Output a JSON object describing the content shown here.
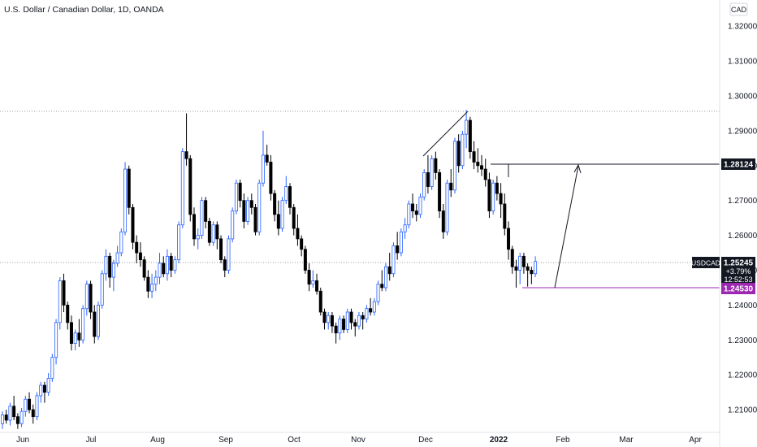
{
  "header": {
    "title": "U.S. Dollar / Canadian Dollar, 1D, OANDA",
    "currency": "CAD"
  },
  "price_labels": {
    "upper_level": "1.28124",
    "current_symbol": "USDCAD",
    "current_price": "1.25245",
    "current_change": "+3.79%",
    "countdown": "12:52:53",
    "support_level": "1.24530"
  },
  "colors": {
    "up": "#2962ff",
    "down": "#000000",
    "support": "#9c27b0",
    "dotted": "#787b86",
    "line": "#131722"
  },
  "chart_data": {
    "type": "candlestick",
    "title": "U.S. Dollar / Canadian Dollar, 1D, OANDA",
    "ylim": [
      1.2035,
      1.3275
    ],
    "y_ticks": [
      "1.32000",
      "1.31000",
      "1.30000",
      "1.29000",
      "1.28000",
      "1.27000",
      "1.26000",
      "1.25000",
      "1.24000",
      "1.23000",
      "1.22000",
      "1.21000"
    ],
    "x_ticks": [
      "Jun",
      "Jul",
      "Aug",
      "Sep",
      "Oct",
      "Nov",
      "Dec",
      "2022",
      "Feb",
      "Mar",
      "Apr"
    ],
    "x_ticks_bold": [
      "2022"
    ],
    "ohlc": [
      [
        1.206,
        1.2095,
        1.2045,
        1.2085
      ],
      [
        1.2085,
        1.21,
        1.206,
        1.207
      ],
      [
        1.207,
        1.212,
        1.2055,
        1.211
      ],
      [
        1.211,
        1.214,
        1.207,
        1.208
      ],
      [
        1.208,
        1.209,
        1.2045,
        1.206
      ],
      [
        1.206,
        1.2105,
        1.205,
        1.2095
      ],
      [
        1.2095,
        1.214,
        1.208,
        1.213
      ],
      [
        1.213,
        1.215,
        1.209,
        1.21
      ],
      [
        1.21,
        1.2115,
        1.206,
        1.208
      ],
      [
        1.208,
        1.215,
        1.207,
        1.214
      ],
      [
        1.214,
        1.218,
        1.212,
        1.217
      ],
      [
        1.217,
        1.218,
        1.212,
        1.215
      ],
      [
        1.215,
        1.2205,
        1.214,
        1.219
      ],
      [
        1.219,
        1.226,
        1.218,
        1.225
      ],
      [
        1.225,
        1.236,
        1.223,
        1.235
      ],
      [
        1.235,
        1.248,
        1.233,
        1.247
      ],
      [
        1.247,
        1.249,
        1.238,
        1.24
      ],
      [
        1.24,
        1.241,
        1.233,
        1.235
      ],
      [
        1.235,
        1.237,
        1.227,
        1.229
      ],
      [
        1.229,
        1.233,
        1.227,
        1.232
      ],
      [
        1.232,
        1.236,
        1.228,
        1.23
      ],
      [
        1.23,
        1.24,
        1.229,
        1.239
      ],
      [
        1.239,
        1.247,
        1.237,
        1.246
      ],
      [
        1.246,
        1.247,
        1.236,
        1.238
      ],
      [
        1.238,
        1.24,
        1.229,
        1.231
      ],
      [
        1.231,
        1.241,
        1.23,
        1.24
      ],
      [
        1.24,
        1.25,
        1.239,
        1.249
      ],
      [
        1.249,
        1.256,
        1.247,
        1.254
      ],
      [
        1.254,
        1.255,
        1.245,
        1.248
      ],
      [
        1.248,
        1.253,
        1.244,
        1.252
      ],
      [
        1.252,
        1.257,
        1.251,
        1.255
      ],
      [
        1.255,
        1.262,
        1.254,
        1.261
      ],
      [
        1.261,
        1.281,
        1.26,
        1.279
      ],
      [
        1.279,
        1.28,
        1.266,
        1.268
      ],
      [
        1.268,
        1.269,
        1.256,
        1.258
      ],
      [
        1.258,
        1.26,
        1.252,
        1.255
      ],
      [
        1.255,
        1.258,
        1.251,
        1.253
      ],
      [
        1.253,
        1.254,
        1.247,
        1.248
      ],
      [
        1.248,
        1.25,
        1.242,
        1.244
      ],
      [
        1.244,
        1.249,
        1.242,
        1.246
      ],
      [
        1.246,
        1.25,
        1.244,
        1.248
      ],
      [
        1.248,
        1.255,
        1.246,
        1.252
      ],
      [
        1.252,
        1.254,
        1.248,
        1.249
      ],
      [
        1.249,
        1.256,
        1.247,
        1.254
      ],
      [
        1.254,
        1.255,
        1.248,
        1.25
      ],
      [
        1.25,
        1.254,
        1.249,
        1.253
      ],
      [
        1.253,
        1.264,
        1.252,
        1.263
      ],
      [
        1.263,
        1.285,
        1.262,
        1.284
      ],
      [
        1.284,
        1.295,
        1.28,
        1.282
      ],
      [
        1.282,
        1.283,
        1.264,
        1.266
      ],
      [
        1.266,
        1.268,
        1.257,
        1.259
      ],
      [
        1.259,
        1.262,
        1.256,
        1.26
      ],
      [
        1.26,
        1.271,
        1.259,
        1.27
      ],
      [
        1.27,
        1.271,
        1.262,
        1.264
      ],
      [
        1.264,
        1.265,
        1.257,
        1.258
      ],
      [
        1.258,
        1.264,
        1.257,
        1.263
      ],
      [
        1.263,
        1.264,
        1.256,
        1.259
      ],
      [
        1.259,
        1.26,
        1.252,
        1.253
      ],
      [
        1.253,
        1.254,
        1.248,
        1.25
      ],
      [
        1.25,
        1.26,
        1.249,
        1.259
      ],
      [
        1.259,
        1.268,
        1.258,
        1.267
      ],
      [
        1.267,
        1.276,
        1.266,
        1.275
      ],
      [
        1.275,
        1.276,
        1.268,
        1.27
      ],
      [
        1.27,
        1.272,
        1.262,
        1.264
      ],
      [
        1.264,
        1.271,
        1.263,
        1.27
      ],
      [
        1.27,
        1.272,
        1.266,
        1.268
      ],
      [
        1.268,
        1.269,
        1.26,
        1.261
      ],
      [
        1.261,
        1.276,
        1.26,
        1.275
      ],
      [
        1.275,
        1.29,
        1.274,
        1.283
      ],
      [
        1.283,
        1.286,
        1.28,
        1.281
      ],
      [
        1.281,
        1.283,
        1.27,
        1.272
      ],
      [
        1.272,
        1.273,
        1.264,
        1.266
      ],
      [
        1.266,
        1.27,
        1.26,
        1.262
      ],
      [
        1.262,
        1.271,
        1.261,
        1.27
      ],
      [
        1.27,
        1.277,
        1.269,
        1.274
      ],
      [
        1.274,
        1.275,
        1.266,
        1.268
      ],
      [
        1.268,
        1.269,
        1.26,
        1.262
      ],
      [
        1.262,
        1.266,
        1.257,
        1.259
      ],
      [
        1.259,
        1.26,
        1.254,
        1.256
      ],
      [
        1.256,
        1.257,
        1.249,
        1.25
      ],
      [
        1.25,
        1.252,
        1.244,
        1.246
      ],
      [
        1.246,
        1.25,
        1.245,
        1.247
      ],
      [
        1.247,
        1.249,
        1.243,
        1.244
      ],
      [
        1.244,
        1.245,
        1.237,
        1.238
      ],
      [
        1.238,
        1.239,
        1.233,
        1.235
      ],
      [
        1.235,
        1.238,
        1.233,
        1.237
      ],
      [
        1.237,
        1.238,
        1.232,
        1.234
      ],
      [
        1.234,
        1.235,
        1.229,
        1.232
      ],
      [
        1.232,
        1.237,
        1.23,
        1.236
      ],
      [
        1.236,
        1.237,
        1.232,
        1.233
      ],
      [
        1.233,
        1.239,
        1.232,
        1.238
      ],
      [
        1.238,
        1.239,
        1.233,
        1.235
      ],
      [
        1.235,
        1.236,
        1.231,
        1.234
      ],
      [
        1.234,
        1.238,
        1.233,
        1.237
      ],
      [
        1.237,
        1.238,
        1.233,
        1.236
      ],
      [
        1.236,
        1.24,
        1.235,
        1.239
      ],
      [
        1.239,
        1.242,
        1.237,
        1.238
      ],
      [
        1.238,
        1.242,
        1.237,
        1.241
      ],
      [
        1.241,
        1.247,
        1.24,
        1.246
      ],
      [
        1.246,
        1.25,
        1.244,
        1.245
      ],
      [
        1.245,
        1.252,
        1.244,
        1.251
      ],
      [
        1.251,
        1.255,
        1.247,
        1.249
      ],
      [
        1.249,
        1.258,
        1.248,
        1.257
      ],
      [
        1.257,
        1.261,
        1.253,
        1.255
      ],
      [
        1.255,
        1.262,
        1.254,
        1.261
      ],
      [
        1.261,
        1.265,
        1.259,
        1.263
      ],
      [
        1.263,
        1.27,
        1.262,
        1.269
      ],
      [
        1.269,
        1.272,
        1.265,
        1.267
      ],
      [
        1.267,
        1.269,
        1.264,
        1.266
      ],
      [
        1.266,
        1.272,
        1.265,
        1.271
      ],
      [
        1.271,
        1.279,
        1.27,
        1.278
      ],
      [
        1.278,
        1.283,
        1.272,
        1.274
      ],
      [
        1.274,
        1.283,
        1.273,
        1.282
      ],
      [
        1.282,
        1.284,
        1.276,
        1.278
      ],
      [
        1.278,
        1.279,
        1.265,
        1.267
      ],
      [
        1.267,
        1.269,
        1.259,
        1.261
      ],
      [
        1.261,
        1.276,
        1.26,
        1.275
      ],
      [
        1.275,
        1.279,
        1.271,
        1.273
      ],
      [
        1.273,
        1.288,
        1.272,
        1.287
      ],
      [
        1.287,
        1.289,
        1.278,
        1.28
      ],
      [
        1.28,
        1.29,
        1.279,
        1.289
      ],
      [
        1.289,
        1.296,
        1.285,
        1.293
      ],
      [
        1.293,
        1.294,
        1.282,
        1.284
      ],
      [
        1.284,
        1.287,
        1.279,
        1.281
      ],
      [
        1.281,
        1.285,
        1.278,
        1.28
      ],
      [
        1.28,
        1.283,
        1.277,
        1.279
      ],
      [
        1.279,
        1.282,
        1.274,
        1.276
      ],
      [
        1.276,
        1.278,
        1.265,
        1.267
      ],
      [
        1.267,
        1.276,
        1.266,
        1.275
      ],
      [
        1.275,
        1.277,
        1.27,
        1.272
      ],
      [
        1.272,
        1.275,
        1.265,
        1.269
      ],
      [
        1.269,
        1.272,
        1.26,
        1.262
      ],
      [
        1.262,
        1.264,
        1.253,
        1.256
      ],
      [
        1.256,
        1.257,
        1.249,
        1.251
      ],
      [
        1.251,
        1.253,
        1.245,
        1.25
      ],
      [
        1.25,
        1.255,
        1.246,
        1.254
      ],
      [
        1.254,
        1.255,
        1.249,
        1.251
      ],
      [
        1.251,
        1.252,
        1.2453,
        1.25
      ],
      [
        1.25,
        1.251,
        1.246,
        1.249
      ],
      [
        1.249,
        1.254,
        1.248,
        1.2525
      ]
    ]
  }
}
